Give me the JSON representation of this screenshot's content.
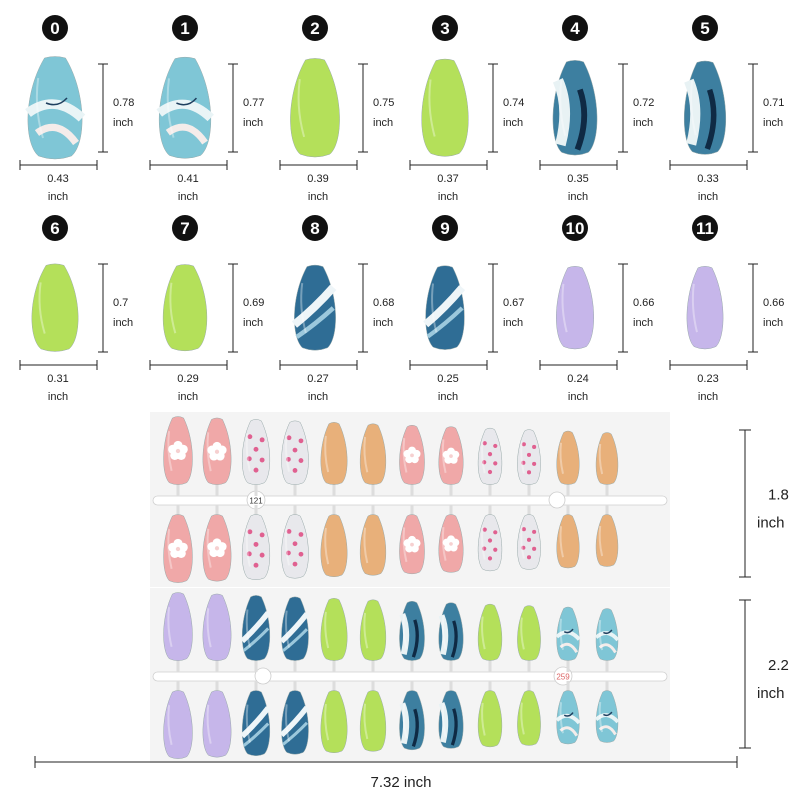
{
  "sizes": [
    {
      "index": "0",
      "length": "0.78",
      "width": "0.43",
      "color": "#7fc6d6",
      "pattern": "marble"
    },
    {
      "index": "1",
      "length": "0.77",
      "width": "0.41",
      "color": "#7fc6d6",
      "pattern": "marble"
    },
    {
      "index": "2",
      "length": "0.75",
      "width": "0.39",
      "color": "#b4e05a",
      "pattern": "solid"
    },
    {
      "index": "3",
      "length": "0.74",
      "width": "0.37",
      "color": "#b4e05a",
      "pattern": "solid"
    },
    {
      "index": "4",
      "length": "0.72",
      "width": "0.35",
      "color": "#3d7fa0",
      "pattern": "marble-dark"
    },
    {
      "index": "5",
      "length": "0.71",
      "width": "0.33",
      "color": "#3d7fa0",
      "pattern": "marble-dark"
    },
    {
      "index": "6",
      "length": "0.7",
      "width": "0.31",
      "color": "#b4e05a",
      "pattern": "solid"
    },
    {
      "index": "7",
      "length": "0.69",
      "width": "0.29",
      "color": "#b4e05a",
      "pattern": "solid"
    },
    {
      "index": "8",
      "length": "0.68",
      "width": "0.27",
      "color": "#2f6d95",
      "pattern": "wave"
    },
    {
      "index": "9",
      "length": "0.67",
      "width": "0.25",
      "color": "#2f6d95",
      "pattern": "wave"
    },
    {
      "index": "10",
      "length": "0.66",
      "width": "0.24",
      "color": "#c6b6ea",
      "pattern": "solid"
    },
    {
      "index": "11",
      "length": "0.66",
      "width": "0.23",
      "color": "#c6b6ea",
      "pattern": "solid"
    }
  ],
  "unit": "inch",
  "sets": [
    {
      "tag": "121",
      "height_value": "1.8",
      "height_unit": "inch",
      "colors": [
        "#f0a8a8",
        "#f0a8a8",
        "#e8e8ec",
        "#e8e8ec",
        "#e8b07a",
        "#e8b07a",
        "#f0a8a8",
        "#f0a8a8",
        "#e8e8ec",
        "#e8e8ec",
        "#e8b07a",
        "#e8b07a"
      ],
      "patterns": [
        "flower",
        "flower",
        "dots",
        "dots",
        "solid",
        "solid",
        "flower",
        "flower",
        "dots",
        "dots",
        "solid",
        "solid"
      ]
    },
    {
      "tag": "259",
      "height_value": "2.2",
      "height_unit": "inch",
      "colors": [
        "#c6b6ea",
        "#c6b6ea",
        "#2f6d95",
        "#2f6d95",
        "#b4e05a",
        "#b4e05a",
        "#3d7fa0",
        "#3d7fa0",
        "#b4e05a",
        "#b4e05a",
        "#7fc6d6",
        "#7fc6d6"
      ],
      "patterns": [
        "solid",
        "solid",
        "wave",
        "wave",
        "solid",
        "solid",
        "marble-dark",
        "marble-dark",
        "solid",
        "solid",
        "marble",
        "marble"
      ]
    }
  ],
  "total_width": "7.32 inch",
  "colors": {
    "badge": "#111111",
    "line": "#222222",
    "card": "#f4f4f4",
    "flower": "#ffffff",
    "dot": "#e06090"
  }
}
